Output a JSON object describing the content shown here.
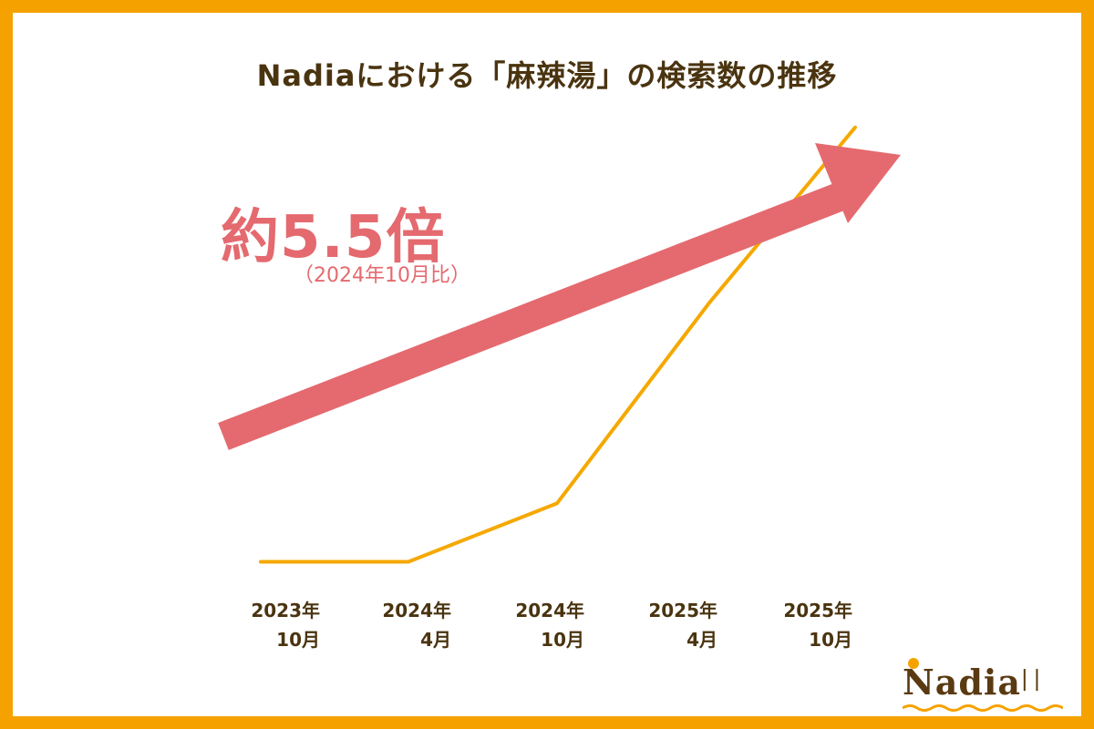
{
  "title": "Nadiaにおける「麻辣湯」の検索数の推移",
  "annotation": {
    "multiplier": "約5.5倍",
    "note": "（2024年10月比）"
  },
  "brand": {
    "name": "Nadia",
    "utensils": "ᛁᛁ"
  },
  "colors": {
    "frame": "#f5a200",
    "line": "#f5a800",
    "arrow": "#e46a6f",
    "text": "#4a3410"
  },
  "chart_data": {
    "type": "line",
    "title": "Nadiaにおける「麻辣湯」の検索数の推移",
    "xlabel": "",
    "ylabel": "",
    "x_ticks": [
      {
        "line1": "2023年",
        "line2": "10月"
      },
      {
        "line1": "2024年",
        "line2": "4月"
      },
      {
        "line1": "2024年",
        "line2": "10月"
      },
      {
        "line1": "2025年",
        "line2": "4月"
      },
      {
        "line1": "2025年",
        "line2": "10月"
      }
    ],
    "categories": [
      "2023年10月",
      "2024年4月",
      "2024年10月",
      "2025年4月",
      "2025年10月"
    ],
    "values": [
      0.3,
      0.3,
      1,
      3.4,
      5.5
    ],
    "ylim": [
      0,
      6
    ],
    "y_axis_visible": false,
    "grid": false,
    "legend": "none",
    "annotations": [
      "約5.5倍",
      "（2024年10月比）"
    ]
  }
}
